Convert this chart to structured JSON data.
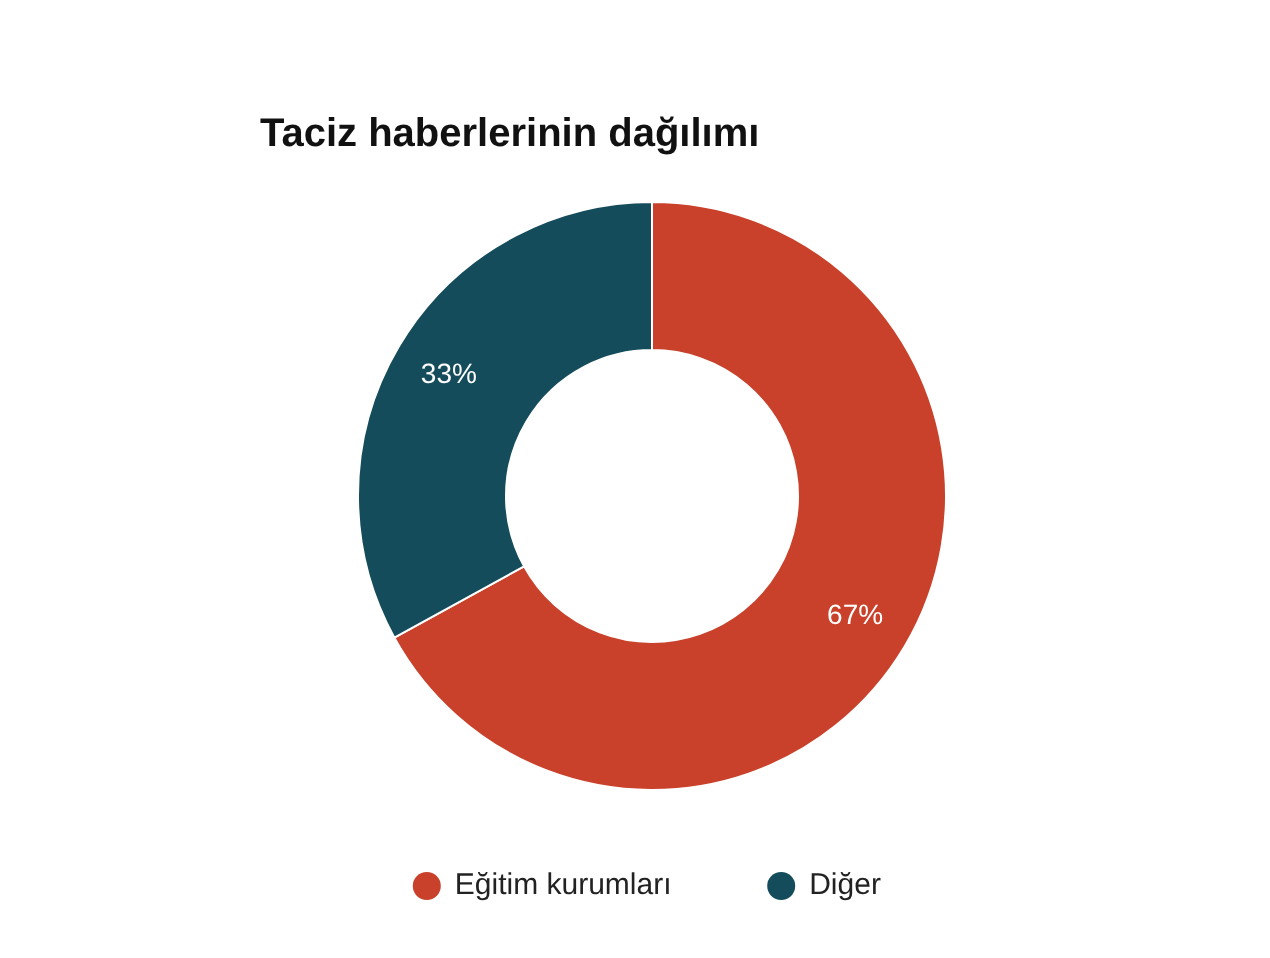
{
  "chart_data": {
    "type": "donut",
    "title": "Taciz haberlerinin dağılımı",
    "categories": [
      "Eğitim kurumları",
      "Diğer"
    ],
    "values": [
      67,
      33
    ],
    "colors": [
      "#c9412a",
      "#154c5c"
    ],
    "value_labels": [
      "67%",
      "33%"
    ],
    "legend": "bottom"
  }
}
